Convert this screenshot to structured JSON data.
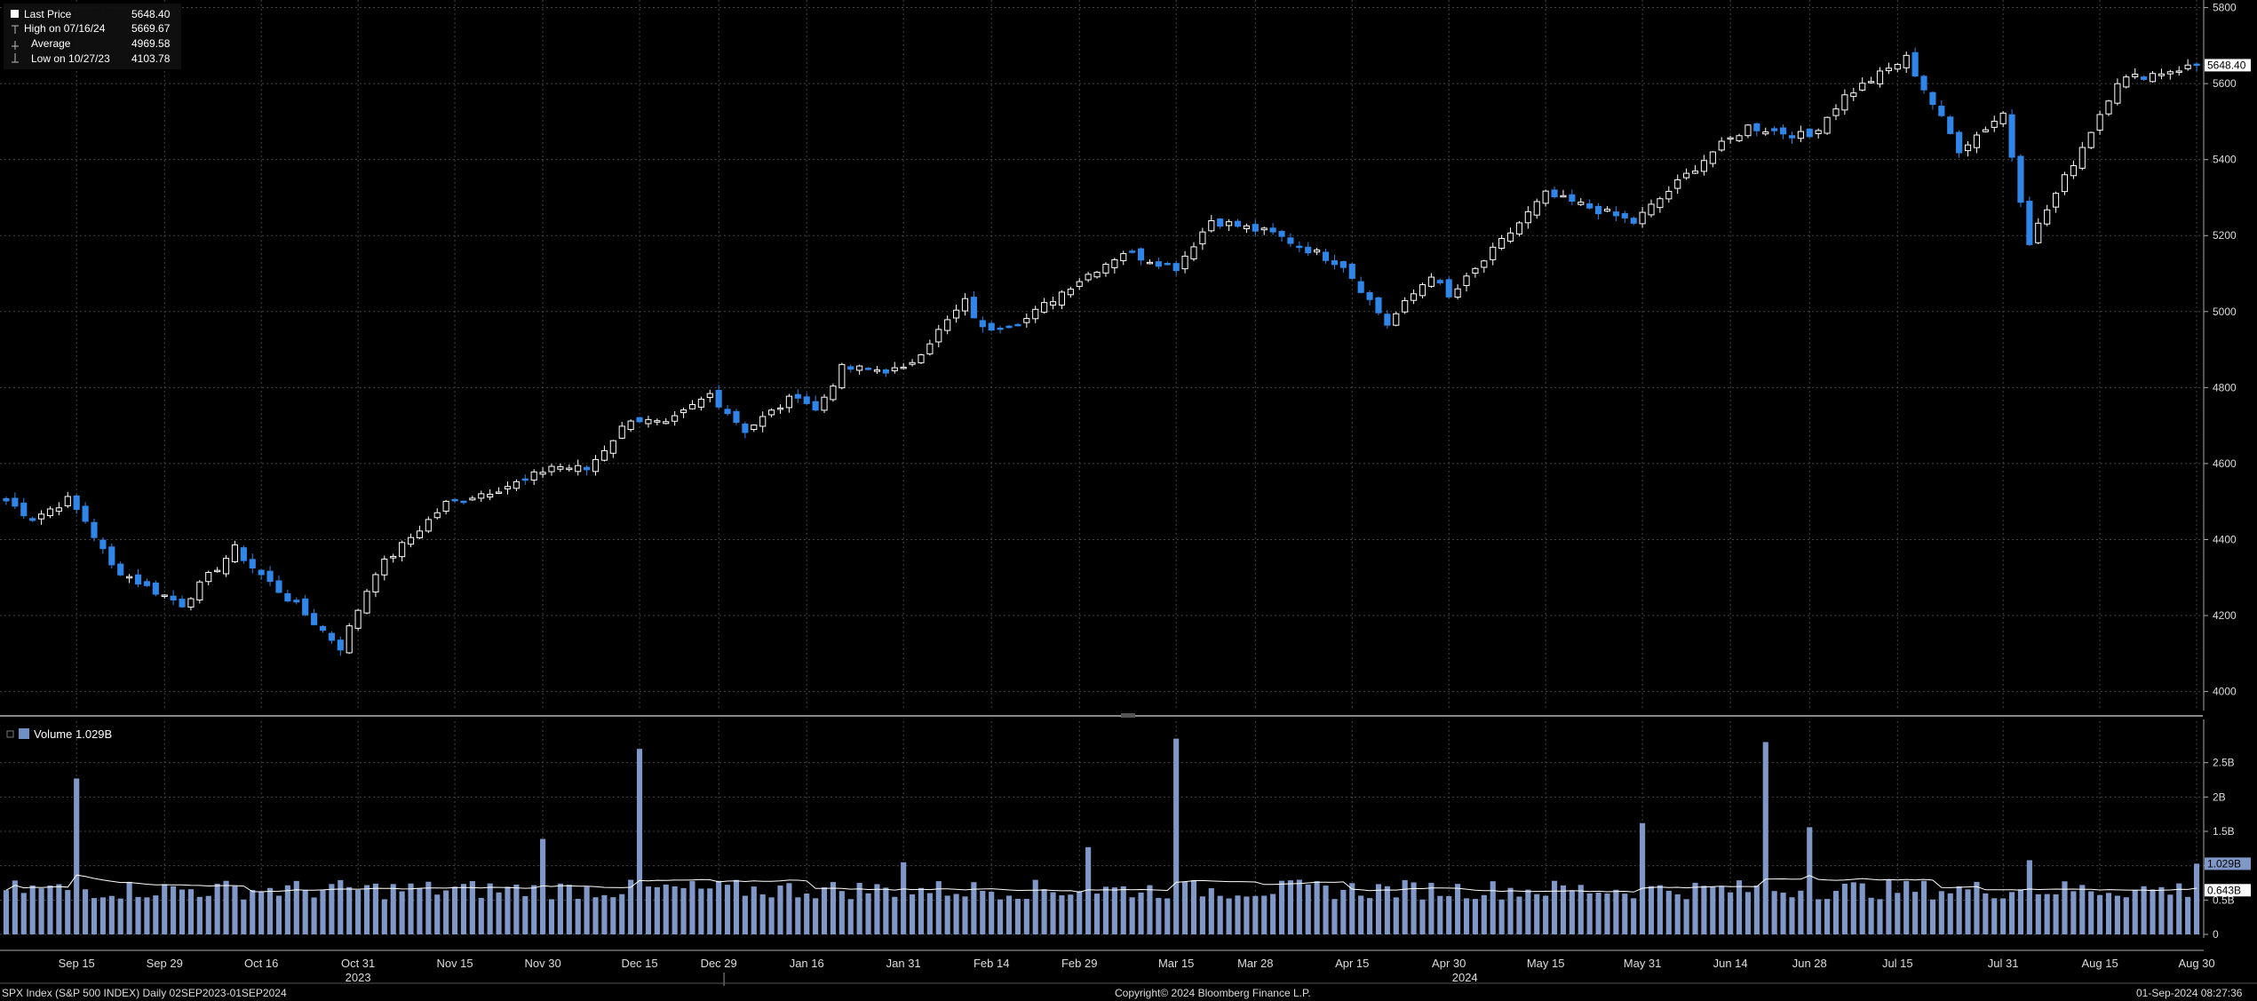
{
  "legend": {
    "price": [
      {
        "label": "Last Price",
        "value": "5648.40",
        "marker": "square-fill",
        "color": "#ffffff"
      },
      {
        "label": "High on 07/16/24",
        "value": "5669.67",
        "marker": "high-tick",
        "color": "#ffffff"
      },
      {
        "label": "Average",
        "value": "4969.58",
        "marker": "average-line",
        "color": "#ffffff"
      },
      {
        "label": "Low on 10/27/23",
        "value": "4103.78",
        "marker": "low-tick",
        "color": "#ffffff"
      }
    ],
    "volume": {
      "label": "Volume",
      "value": "1.029B",
      "color": "#6f8fc5"
    }
  },
  "price_axis": {
    "ticks": [
      "5800",
      "5600",
      "5400",
      "5200",
      "5000",
      "4800",
      "4600",
      "4400",
      "4200",
      "4000"
    ],
    "last_label": "5648.40"
  },
  "volume_axis": {
    "ticks": [
      "2.5B",
      "2B",
      "1.5B",
      "1B",
      "0.5B",
      "0"
    ],
    "last_label": "1.029B",
    "average_label": "0.643B"
  },
  "x_axis": {
    "date_ticks": [
      "Sep 15",
      "Sep 29",
      "Oct 16",
      "Oct 31",
      "Nov 15",
      "Nov 30",
      "Dec 15",
      "Dec 29",
      "Jan 16",
      "Jan 31",
      "Feb 14",
      "Feb 29",
      "Mar 15",
      "Mar 28",
      "Apr 15",
      "Apr 30",
      "May 15",
      "May 31",
      "Jun 14",
      "Jun 28",
      "Jul 15",
      "Jul 31",
      "Aug 15",
      "Aug 30"
    ],
    "years": [
      "2023",
      "2024"
    ]
  },
  "footer": {
    "left": "SPX Index (S&P 500 INDEX)  Daily 02SEP2023-01SEP2024",
    "center": "Copyright© 2024 Bloomberg Finance L.P.",
    "right": "01-Sep-2024 08:27:36"
  },
  "colors": {
    "up_candle": "#ffffff",
    "down_candle": "#2f86e8",
    "volume_bar": "#7f98c8",
    "average_line": "#ffffff",
    "grid": "#444444"
  },
  "chart_data": [
    {
      "type": "candlestick",
      "title": "SPX Index (S&P 500 INDEX)",
      "ylim": [
        3950,
        5820
      ],
      "grid": true,
      "anchors": [
        [
          "2023-09-05",
          4502
        ],
        [
          "2023-09-08",
          4456
        ],
        [
          "2023-09-14",
          4505
        ],
        [
          "2023-09-18",
          4450
        ],
        [
          "2023-09-21",
          4330
        ],
        [
          "2023-09-27",
          4275
        ],
        [
          "2023-10-03",
          4230
        ],
        [
          "2023-10-11",
          4376
        ],
        [
          "2023-10-13",
          4327
        ],
        [
          "2023-10-20",
          4225
        ],
        [
          "2023-10-27",
          4117
        ],
        [
          "2023-11-02",
          4317
        ],
        [
          "2023-11-14",
          4495
        ],
        [
          "2023-11-28",
          4555
        ],
        [
          "2023-12-01",
          4594
        ],
        [
          "2023-12-07",
          4585
        ],
        [
          "2023-12-14",
          4720
        ],
        [
          "2023-12-20",
          4700
        ],
        [
          "2023-12-28",
          4783
        ],
        [
          "2024-01-04",
          4688
        ],
        [
          "2024-01-12",
          4783
        ],
        [
          "2024-01-17",
          4739
        ],
        [
          "2024-01-22",
          4850
        ],
        [
          "2024-01-31",
          4845
        ],
        [
          "2024-02-09",
          5026
        ],
        [
          "2024-02-13",
          4953
        ],
        [
          "2024-02-21",
          4981
        ],
        [
          "2024-02-28",
          5069
        ],
        [
          "2024-03-07",
          5157
        ],
        [
          "2024-03-15",
          5117
        ],
        [
          "2024-03-21",
          5241
        ],
        [
          "2024-04-02",
          5205
        ],
        [
          "2024-04-12",
          5123
        ],
        [
          "2024-04-19",
          4967
        ],
        [
          "2024-04-26",
          5099
        ],
        [
          "2024-04-30",
          5035
        ],
        [
          "2024-05-15",
          5308
        ],
        [
          "2024-05-23",
          5267
        ],
        [
          "2024-05-30",
          5235
        ],
        [
          "2024-06-12",
          5421
        ],
        [
          "2024-06-18",
          5487
        ],
        [
          "2024-06-28",
          5460
        ],
        [
          "2024-07-05",
          5567
        ],
        [
          "2024-07-16",
          5667
        ],
        [
          "2024-07-24",
          5427
        ],
        [
          "2024-07-31",
          5522
        ],
        [
          "2024-08-05",
          5186
        ],
        [
          "2024-08-13",
          5434
        ],
        [
          "2024-08-19",
          5608
        ],
        [
          "2024-08-30",
          5648
        ]
      ],
      "high": {
        "date": "2024-07-16",
        "value": 5669.67
      },
      "low": {
        "date": "2023-10-27",
        "value": 4103.78
      },
      "last": 5648.4,
      "average": 4969.58
    },
    {
      "type": "bar",
      "title": "Volume",
      "ylim": [
        0,
        3.0
      ],
      "unit": "B",
      "typical_daily": 0.65,
      "spikes": [
        [
          "2023-09-15",
          2.27
        ],
        [
          "2023-11-30",
          1.39
        ],
        [
          "2023-12-15",
          2.7
        ],
        [
          "2024-01-31",
          1.05
        ],
        [
          "2024-03-01",
          1.27
        ],
        [
          "2024-03-15",
          2.85
        ],
        [
          "2024-05-31",
          1.62
        ],
        [
          "2024-06-21",
          2.8
        ],
        [
          "2024-06-28",
          1.56
        ],
        [
          "2024-08-05",
          1.08
        ],
        [
          "2024-08-30",
          1.029
        ]
      ],
      "last": 1.029,
      "average": 0.643
    }
  ]
}
